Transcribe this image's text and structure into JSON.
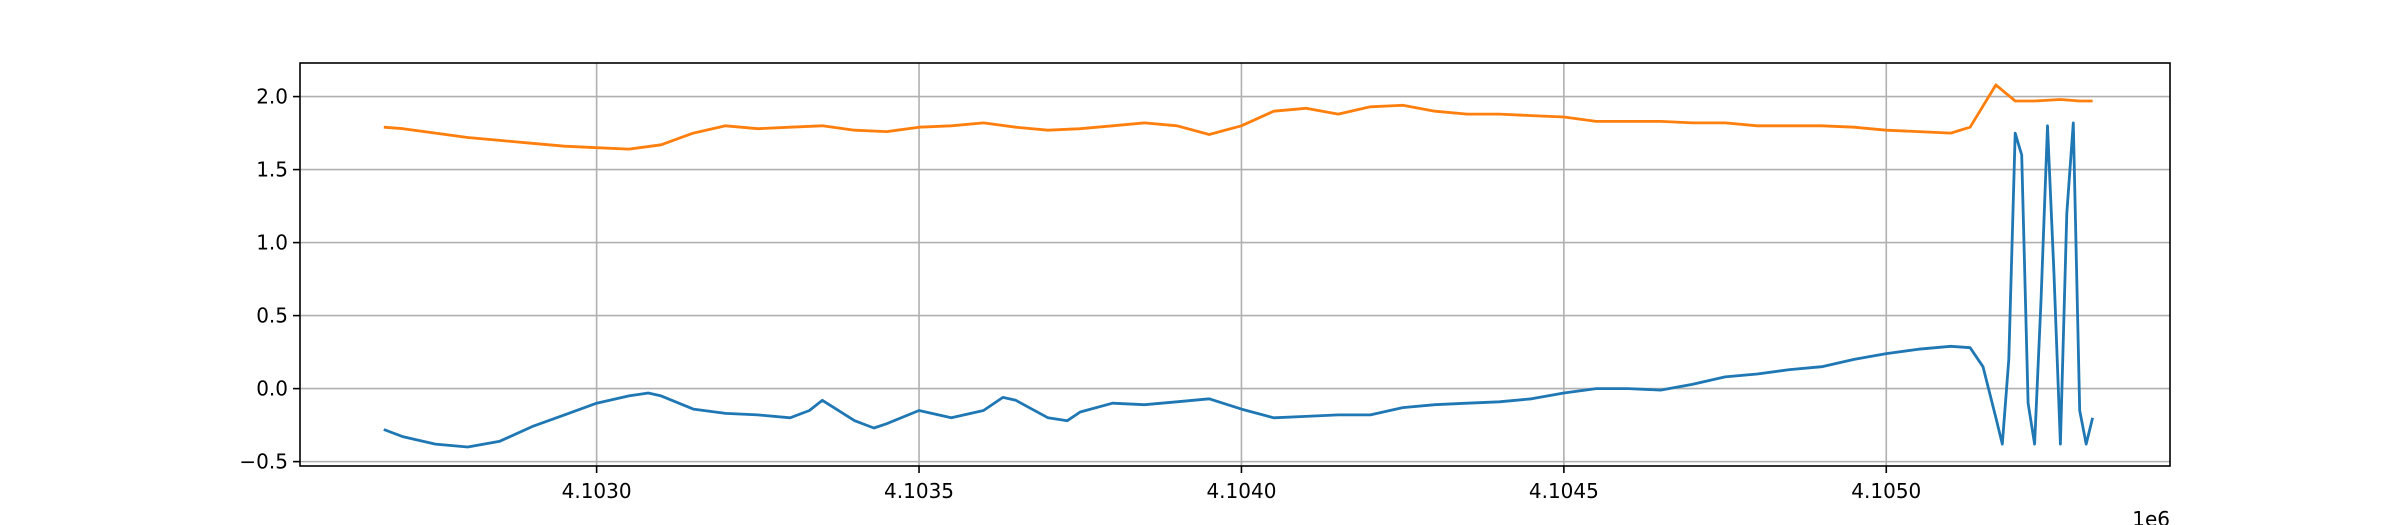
{
  "chart_data": {
    "type": "line",
    "title": "",
    "xlabel": "",
    "ylabel": "",
    "x_offset_label": "1e6",
    "xlim": [
      4.10254,
      4.10544
    ],
    "ylim": [
      -0.53,
      2.23
    ],
    "x_ticks": [
      4.103,
      4.1035,
      4.104,
      4.1045,
      4.105
    ],
    "x_tick_labels": [
      "4.1030",
      "4.1035",
      "4.1040",
      "4.1045",
      "4.1050"
    ],
    "y_ticks": [
      -0.5,
      0.0,
      0.5,
      1.0,
      1.5,
      2.0
    ],
    "y_tick_labels": [
      "−0.5",
      "0.0",
      "0.5",
      "1.0",
      "1.5",
      "2.0"
    ],
    "grid": true,
    "series": [
      {
        "color": "#ff7f0e",
        "x": [
          4.10267,
          4.1027,
          4.10275,
          4.1028,
          4.10285,
          4.1029,
          4.10295,
          4.103,
          4.10305,
          4.1031,
          4.10315,
          4.1032,
          4.10325,
          4.1033,
          4.10335,
          4.1034,
          4.10345,
          4.1035,
          4.10355,
          4.1036,
          4.10365,
          4.1037,
          4.10375,
          4.1038,
          4.10385,
          4.1039,
          4.10395,
          4.104,
          4.10405,
          4.1041,
          4.10415,
          4.1042,
          4.10425,
          4.1043,
          4.10435,
          4.1044,
          4.10445,
          4.1045,
          4.10455,
          4.1046,
          4.10465,
          4.1047,
          4.10475,
          4.1048,
          4.10485,
          4.1049,
          4.10495,
          4.105,
          4.10505,
          4.1051,
          4.10513,
          4.10517,
          4.1052,
          4.10523,
          4.10527,
          4.1053,
          4.10532
        ],
        "y": [
          1.79,
          1.78,
          1.75,
          1.72,
          1.7,
          1.68,
          1.66,
          1.65,
          1.64,
          1.67,
          1.75,
          1.8,
          1.78,
          1.79,
          1.8,
          1.77,
          1.76,
          1.79,
          1.8,
          1.82,
          1.79,
          1.77,
          1.78,
          1.8,
          1.82,
          1.8,
          1.74,
          1.8,
          1.9,
          1.92,
          1.88,
          1.93,
          1.94,
          1.9,
          1.88,
          1.88,
          1.87,
          1.86,
          1.83,
          1.83,
          1.83,
          1.82,
          1.82,
          1.8,
          1.8,
          1.8,
          1.79,
          1.77,
          1.76,
          1.75,
          1.79,
          2.08,
          1.97,
          1.97,
          1.98,
          1.97,
          1.97
        ]
      },
      {
        "color": "#1f77b4",
        "x": [
          4.10267,
          4.1027,
          4.10275,
          4.1028,
          4.10285,
          4.1029,
          4.10295,
          4.103,
          4.10305,
          4.10308,
          4.1031,
          4.10315,
          4.1032,
          4.10325,
          4.1033,
          4.10333,
          4.10335,
          4.1034,
          4.10343,
          4.10345,
          4.1035,
          4.10355,
          4.1036,
          4.10363,
          4.10365,
          4.1037,
          4.10373,
          4.10375,
          4.1038,
          4.10385,
          4.1039,
          4.10395,
          4.104,
          4.10405,
          4.1041,
          4.10415,
          4.1042,
          4.10425,
          4.1043,
          4.10435,
          4.1044,
          4.10445,
          4.1045,
          4.10455,
          4.1046,
          4.10465,
          4.1047,
          4.10475,
          4.1048,
          4.10485,
          4.1049,
          4.10495,
          4.105,
          4.10505,
          4.1051,
          4.10513,
          4.10515,
          4.10517,
          4.10518,
          4.10519,
          4.1052,
          4.10521,
          4.10522,
          4.10523,
          4.10524,
          4.10525,
          4.10526,
          4.10527,
          4.10528,
          4.10529,
          4.1053,
          4.10531,
          4.10532
        ],
        "y": [
          -0.28,
          -0.33,
          -0.38,
          -0.4,
          -0.36,
          -0.26,
          -0.18,
          -0.1,
          -0.05,
          -0.03,
          -0.05,
          -0.14,
          -0.17,
          -0.18,
          -0.2,
          -0.15,
          -0.08,
          -0.22,
          -0.27,
          -0.24,
          -0.15,
          -0.2,
          -0.15,
          -0.06,
          -0.08,
          -0.2,
          -0.22,
          -0.16,
          -0.1,
          -0.11,
          -0.09,
          -0.07,
          -0.14,
          -0.2,
          -0.19,
          -0.18,
          -0.18,
          -0.13,
          -0.11,
          -0.1,
          -0.09,
          -0.07,
          -0.03,
          0.0,
          0.0,
          -0.01,
          0.03,
          0.08,
          0.1,
          0.13,
          0.15,
          0.2,
          0.24,
          0.27,
          0.29,
          0.28,
          0.15,
          -0.2,
          -0.38,
          0.2,
          1.75,
          1.6,
          -0.1,
          -0.38,
          0.6,
          1.8,
          0.8,
          -0.38,
          1.2,
          1.82,
          -0.15,
          -0.38,
          -0.2
        ]
      }
    ]
  }
}
